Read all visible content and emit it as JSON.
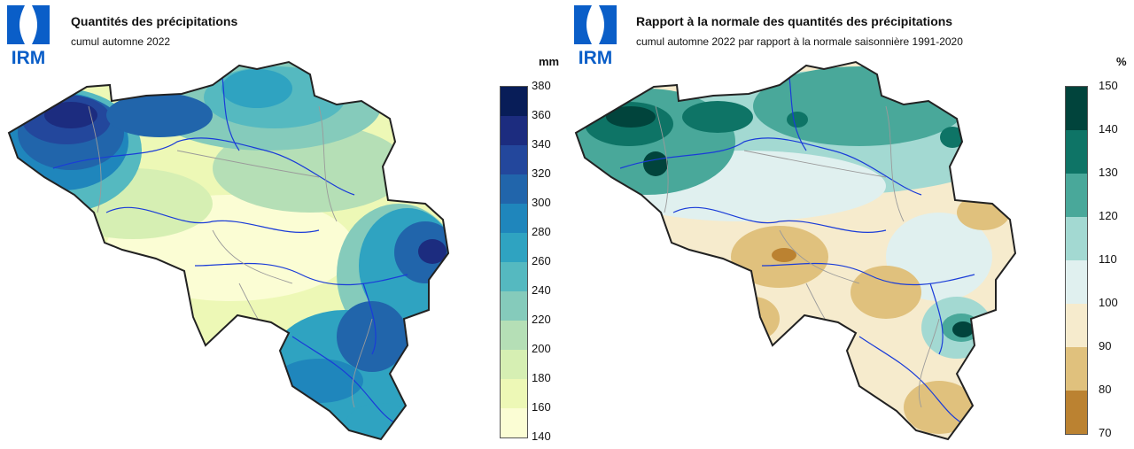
{
  "logo_text": "IRM",
  "left": {
    "title": "Quantités des précipitations",
    "subtitle": "cumul automne 2022",
    "unit": "mm",
    "legend": {
      "ticks": [
        "380",
        "360",
        "340",
        "320",
        "300",
        "280",
        "260",
        "240",
        "220",
        "200",
        "180",
        "160",
        "140"
      ],
      "colors": [
        "#081d58",
        "#1c2c7f",
        "#23479c",
        "#2165ab",
        "#1f86bc",
        "#2fa3c1",
        "#55b9c0",
        "#85cbbb",
        "#b5dfb6",
        "#d6efb3",
        "#edf8b6",
        "#fbfdd4"
      ]
    }
  },
  "right": {
    "title": "Rapport à la normale des quantités des précipitations",
    "subtitle": "cumul automne 2022 par rapport à la normale saisonnière 1991-2020",
    "unit": "%",
    "legend": {
      "ticks": [
        "150",
        "140",
        "130",
        "120",
        "110",
        "100",
        "90",
        "80",
        "70"
      ],
      "colors": [
        "#01443c",
        "#0e7466",
        "#49a89a",
        "#a3d9d2",
        "#e0f0ef",
        "#f6ebcd",
        "#e0c17d",
        "#bb8231"
      ]
    }
  }
}
